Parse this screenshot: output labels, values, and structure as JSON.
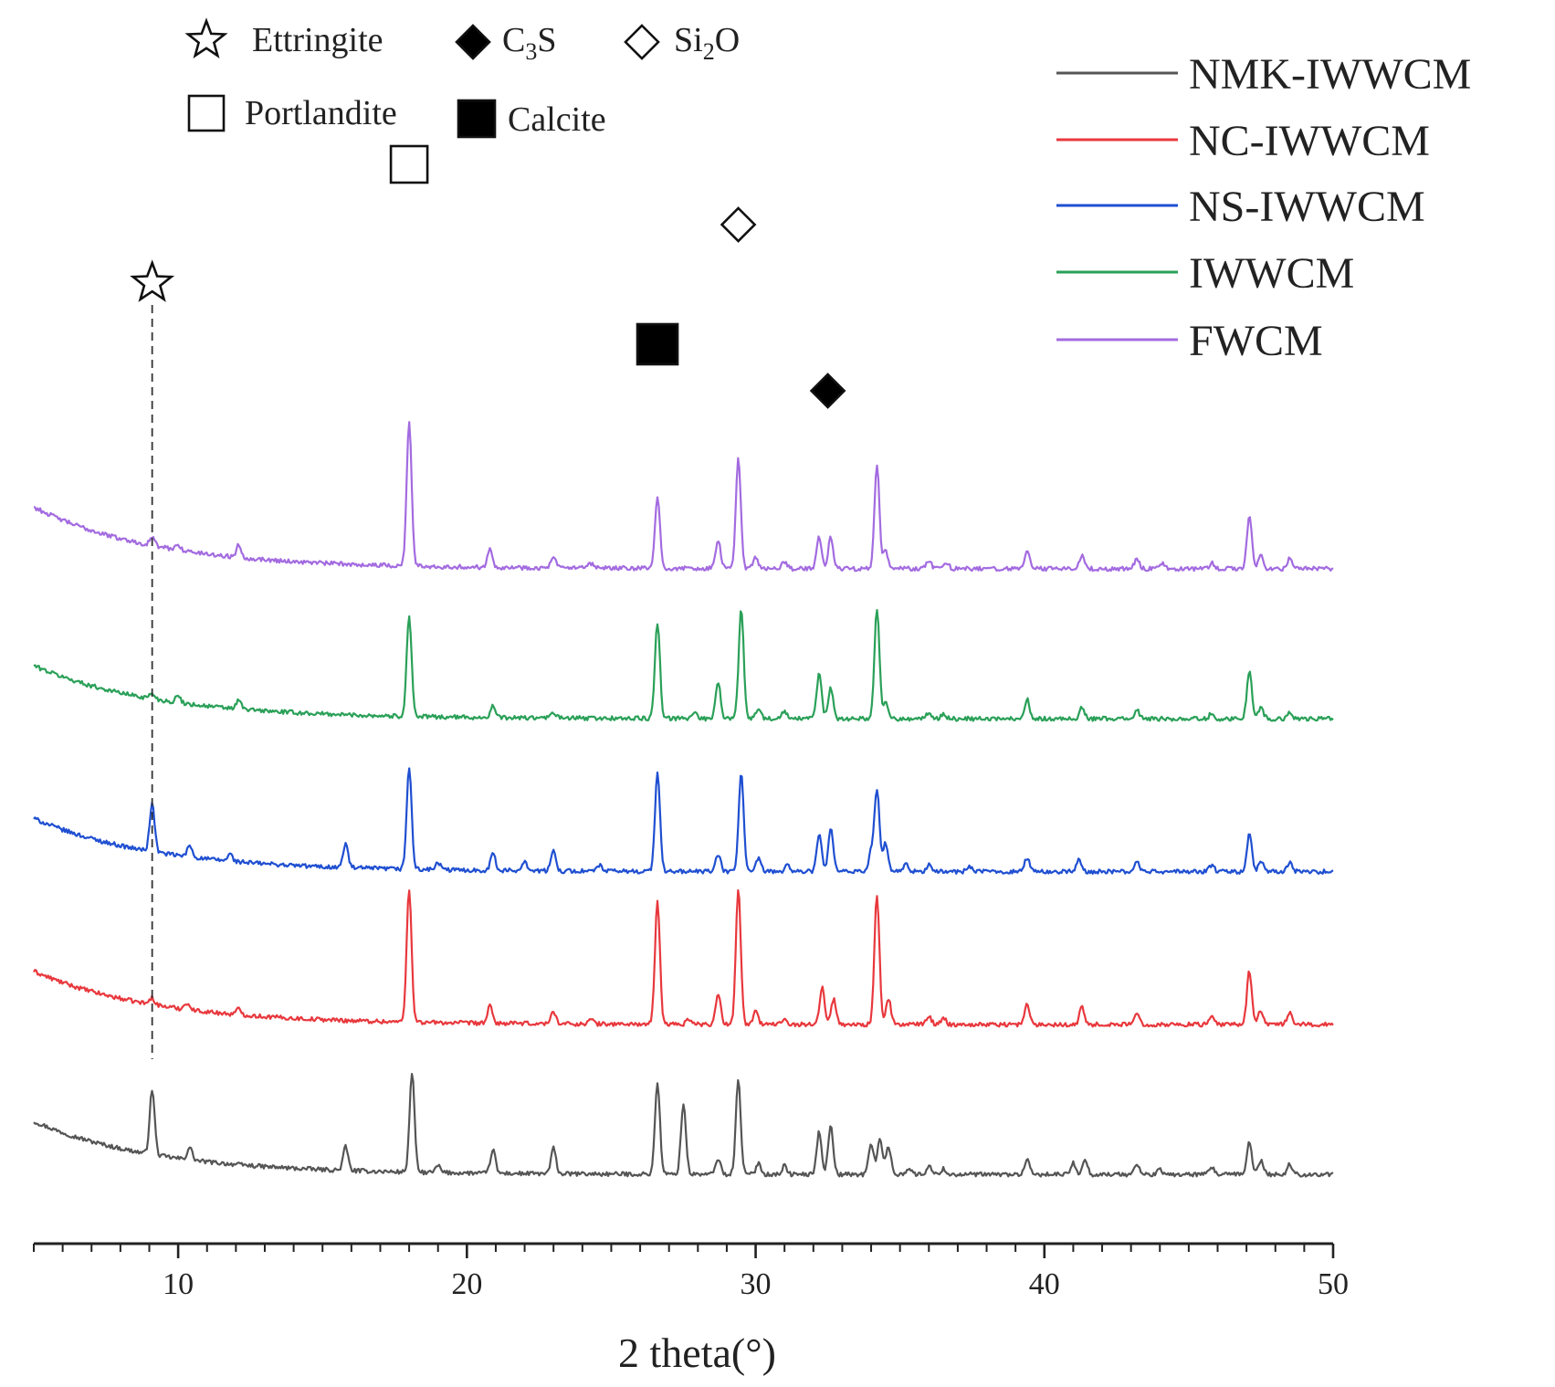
{
  "chart_data": {
    "type": "line",
    "title": "",
    "xlabel": "2 theta(°)",
    "ylabel": "",
    "xlim": [
      5,
      50
    ],
    "xticks": [
      10,
      20,
      30,
      40,
      50
    ],
    "xtick_labels": [
      "10",
      "20",
      "30",
      "40",
      "50"
    ],
    "yaxis_shown": false,
    "legend_position": "top-right",
    "phase_legend": [
      {
        "symbol": "star-open",
        "label": "Ettringite"
      },
      {
        "symbol": "diamond-filled",
        "label_main": "C",
        "label_sub": "3",
        "label_tail": "S"
      },
      {
        "symbol": "diamond-open",
        "label_main": "Si",
        "label_sub": "2",
        "label_tail": "O"
      },
      {
        "symbol": "square-open",
        "label": "Portlandite"
      },
      {
        "symbol": "square-filled",
        "label": "Calcite"
      }
    ],
    "phase_markers": [
      {
        "symbol": "star-open",
        "x": 9.1,
        "dashed_guide": true
      },
      {
        "symbol": "square-open",
        "x": 18.0
      },
      {
        "symbol": "square-filled",
        "x": 26.6
      },
      {
        "symbol": "diamond-open",
        "x": 29.4
      },
      {
        "symbol": "diamond-filled",
        "x": 32.5
      }
    ],
    "series": [
      {
        "name": "NMK-IWWCM",
        "color": "#555555",
        "offset": 0,
        "start": 1.0,
        "end": 0.06,
        "peaks": [
          [
            9.1,
            1.15
          ],
          [
            10.4,
            0.22
          ],
          [
            15.8,
            0.42
          ],
          [
            18.1,
            1.75
          ],
          [
            19.0,
            0.12
          ],
          [
            20.9,
            0.42
          ],
          [
            23.0,
            0.45
          ],
          [
            26.6,
            1.62
          ],
          [
            27.5,
            1.25
          ],
          [
            28.7,
            0.28
          ],
          [
            29.4,
            1.65
          ],
          [
            30.1,
            0.2
          ],
          [
            31.0,
            0.15
          ],
          [
            32.2,
            0.75
          ],
          [
            32.6,
            0.88
          ],
          [
            34.0,
            0.55
          ],
          [
            34.3,
            0.65
          ],
          [
            34.6,
            0.5
          ],
          [
            35.3,
            0.12
          ],
          [
            36.0,
            0.15
          ],
          [
            36.5,
            0.1
          ],
          [
            39.4,
            0.25
          ],
          [
            41.0,
            0.2
          ],
          [
            41.4,
            0.28
          ],
          [
            43.2,
            0.18
          ],
          [
            44.0,
            0.08
          ],
          [
            45.8,
            0.12
          ],
          [
            47.1,
            0.58
          ],
          [
            47.5,
            0.25
          ],
          [
            48.5,
            0.18
          ]
        ]
      },
      {
        "name": "NC-IWWCM",
        "color": "#e8383d",
        "offset": 2.65,
        "start": 1.0,
        "end": 0.06,
        "peaks": [
          [
            9.1,
            0.12
          ],
          [
            10.3,
            0.12
          ],
          [
            12.1,
            0.1
          ],
          [
            18.0,
            2.35
          ],
          [
            20.8,
            0.3
          ],
          [
            23.0,
            0.22
          ],
          [
            24.3,
            0.08
          ],
          [
            26.6,
            2.15
          ],
          [
            27.7,
            0.1
          ],
          [
            28.7,
            0.55
          ],
          [
            29.4,
            2.4
          ],
          [
            30.0,
            0.22
          ],
          [
            31.0,
            0.12
          ],
          [
            32.3,
            0.65
          ],
          [
            32.7,
            0.45
          ],
          [
            34.2,
            2.3
          ],
          [
            34.6,
            0.45
          ],
          [
            36.0,
            0.15
          ],
          [
            36.5,
            0.12
          ],
          [
            39.4,
            0.35
          ],
          [
            41.3,
            0.3
          ],
          [
            43.2,
            0.2
          ],
          [
            45.8,
            0.12
          ],
          [
            47.1,
            0.95
          ],
          [
            47.5,
            0.25
          ],
          [
            48.5,
            0.22
          ]
        ]
      },
      {
        "name": "NS-IWWCM",
        "color": "#1f4fd1",
        "offset": 5.35,
        "start": 1.0,
        "end": 0.06,
        "peaks": [
          [
            9.1,
            0.85
          ],
          [
            10.4,
            0.2
          ],
          [
            11.8,
            0.12
          ],
          [
            15.8,
            0.42
          ],
          [
            18.0,
            1.8
          ],
          [
            19.0,
            0.12
          ],
          [
            20.9,
            0.3
          ],
          [
            22.0,
            0.18
          ],
          [
            23.0,
            0.35
          ],
          [
            24.6,
            0.1
          ],
          [
            26.6,
            1.75
          ],
          [
            28.7,
            0.3
          ],
          [
            29.5,
            1.75
          ],
          [
            30.1,
            0.22
          ],
          [
            31.1,
            0.12
          ],
          [
            32.2,
            0.65
          ],
          [
            32.6,
            0.75
          ],
          [
            34.0,
            0.35
          ],
          [
            34.2,
            1.45
          ],
          [
            34.5,
            0.5
          ],
          [
            35.2,
            0.12
          ],
          [
            36.0,
            0.12
          ],
          [
            37.4,
            0.1
          ],
          [
            39.4,
            0.25
          ],
          [
            41.2,
            0.2
          ],
          [
            43.2,
            0.18
          ],
          [
            45.8,
            0.12
          ],
          [
            47.1,
            0.65
          ],
          [
            47.5,
            0.18
          ],
          [
            48.5,
            0.15
          ]
        ]
      },
      {
        "name": "IWWCM",
        "color": "#2aa058",
        "offset": 8.05,
        "start": 1.0,
        "end": 0.06,
        "peaks": [
          [
            9.1,
            0.1
          ],
          [
            10.0,
            0.12
          ],
          [
            12.1,
            0.15
          ],
          [
            18.0,
            1.78
          ],
          [
            20.9,
            0.2
          ],
          [
            23.0,
            0.1
          ],
          [
            26.6,
            1.7
          ],
          [
            27.9,
            0.12
          ],
          [
            28.7,
            0.65
          ],
          [
            29.5,
            1.95
          ],
          [
            30.1,
            0.2
          ],
          [
            31.0,
            0.12
          ],
          [
            32.2,
            0.8
          ],
          [
            32.6,
            0.55
          ],
          [
            34.2,
            1.95
          ],
          [
            34.5,
            0.3
          ],
          [
            36.0,
            0.1
          ],
          [
            36.5,
            0.08
          ],
          [
            39.4,
            0.35
          ],
          [
            41.3,
            0.2
          ],
          [
            43.2,
            0.15
          ],
          [
            45.8,
            0.1
          ],
          [
            47.1,
            0.85
          ],
          [
            47.5,
            0.2
          ],
          [
            48.5,
            0.12
          ]
        ]
      },
      {
        "name": "FWCM",
        "color": "#a36be0",
        "offset": 10.7,
        "start": 1.15,
        "end": 0.06,
        "peaks": [
          [
            9.1,
            0.15
          ],
          [
            10.0,
            0.1
          ],
          [
            12.1,
            0.22
          ],
          [
            18.0,
            2.55
          ],
          [
            20.8,
            0.35
          ],
          [
            23.0,
            0.18
          ],
          [
            24.3,
            0.08
          ],
          [
            26.6,
            1.25
          ],
          [
            28.7,
            0.5
          ],
          [
            29.4,
            1.95
          ],
          [
            30.0,
            0.2
          ],
          [
            31.0,
            0.12
          ],
          [
            32.2,
            0.55
          ],
          [
            32.6,
            0.55
          ],
          [
            34.2,
            1.85
          ],
          [
            34.5,
            0.3
          ],
          [
            36.0,
            0.15
          ],
          [
            36.6,
            0.12
          ],
          [
            39.4,
            0.32
          ],
          [
            41.3,
            0.22
          ],
          [
            43.2,
            0.18
          ],
          [
            44.1,
            0.08
          ],
          [
            45.8,
            0.1
          ],
          [
            47.1,
            0.95
          ],
          [
            47.5,
            0.22
          ],
          [
            48.5,
            0.18
          ]
        ]
      }
    ]
  }
}
